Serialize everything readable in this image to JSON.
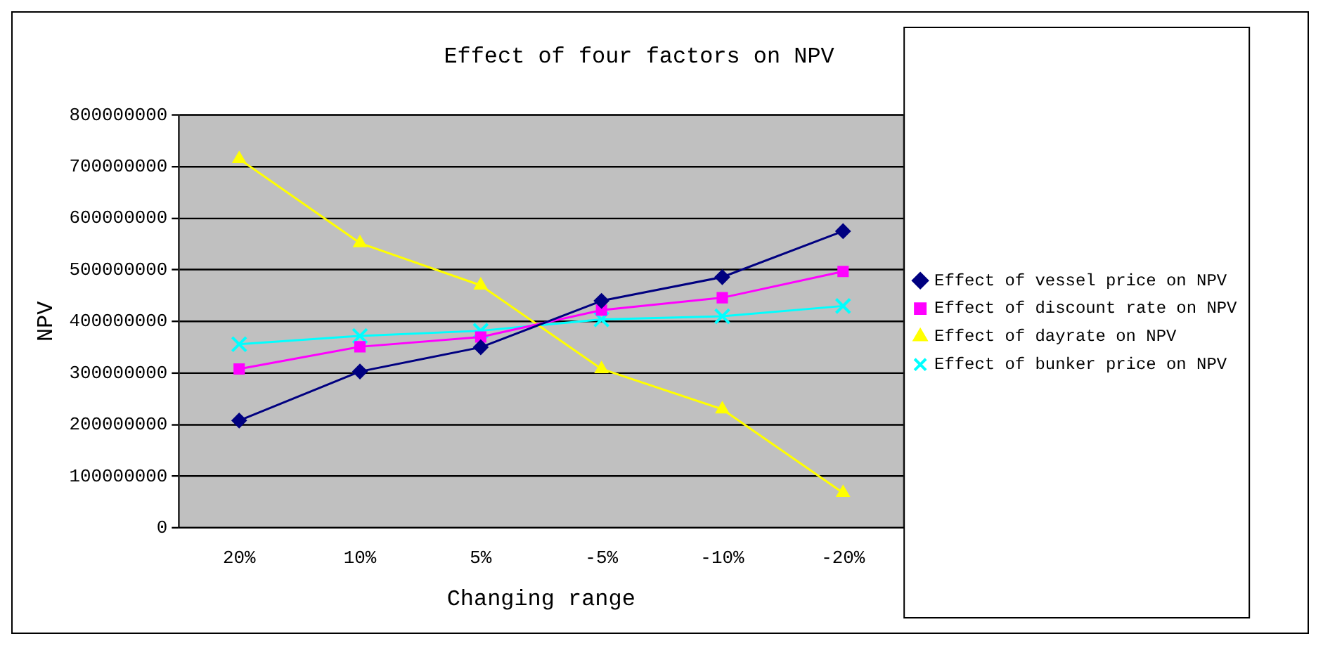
{
  "chart_data": {
    "type": "line",
    "title": "Effect of four factors on NPV",
    "xlabel": "Changing range",
    "ylabel": "NPV",
    "categories": [
      "20%",
      "10%",
      "5%",
      "-5%",
      "-10%",
      "-20%"
    ],
    "series": [
      {
        "name": "Effect of vessel price on NPV",
        "color": "#000080",
        "marker": "diamond",
        "values": [
          208000000,
          303000000,
          350000000,
          440000000,
          486000000,
          575000000
        ]
      },
      {
        "name": "Effect of discount rate on NPV",
        "color": "#ff00ff",
        "marker": "square",
        "values": [
          308000000,
          351000000,
          370000000,
          422000000,
          446000000,
          497000000
        ]
      },
      {
        "name": "Effect of dayrate on NPV",
        "color": "#ffff00",
        "marker": "triangle",
        "values": [
          715000000,
          552000000,
          470000000,
          308000000,
          230000000,
          68000000
        ]
      },
      {
        "name": "Effect of bunker price on NPV",
        "color": "#00ffff",
        "marker": "cross",
        "values": [
          356000000,
          372000000,
          382000000,
          404000000,
          410000000,
          430000000
        ]
      }
    ],
    "ylim": [
      0,
      800000000
    ],
    "yticks": [
      0,
      100000000,
      200000000,
      300000000,
      400000000,
      500000000,
      600000000,
      700000000,
      800000000
    ],
    "grid": "y",
    "legend": "right"
  }
}
